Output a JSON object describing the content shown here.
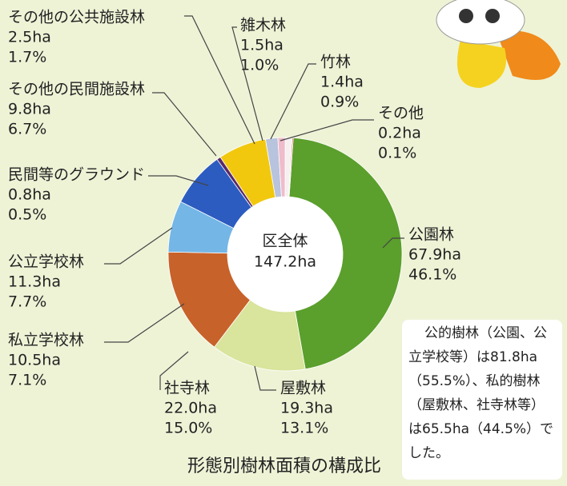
{
  "chart_data": {
    "type": "donut",
    "title": "形態別樹林面積の構成比",
    "center_label": "区全体",
    "total": 147.2,
    "total_label": "147.2ha",
    "categories": [
      "公園林",
      "屋敷林",
      "社寺林",
      "私立学校林",
      "公立学校林",
      "民間等のグラウンド",
      "その他の民間施設林",
      "その他の公共施設林",
      "雑木林",
      "竹林",
      "その他"
    ],
    "values": [
      67.9,
      19.3,
      22.0,
      10.5,
      11.3,
      0.8,
      9.8,
      2.5,
      1.5,
      1.4,
      0.2
    ],
    "value_labels": [
      "67.9ha",
      "19.3ha",
      "22.0ha",
      "10.5ha",
      "11.3ha",
      "0.8ha",
      "9.8ha",
      "2.5ha",
      "1.5ha",
      "1.4ha",
      "0.2ha"
    ],
    "percents": [
      46.1,
      13.1,
      15.0,
      7.1,
      7.7,
      0.5,
      6.7,
      1.7,
      1.0,
      0.9,
      0.1
    ],
    "percent_labels": [
      "46.1%",
      "13.1%",
      "15.0%",
      "7.1%",
      "7.7%",
      "0.5%",
      "6.7%",
      "1.7%",
      "1.0%",
      "0.9%",
      "0.1%"
    ],
    "colors": [
      "#5b9f2c",
      "#d9e49c",
      "#c7622a",
      "#74b6e6",
      "#2c5cc0",
      "#5a2a6a",
      "#f1c80e",
      "#b8c3dd",
      "#efbccb",
      "#f6f0f0",
      "#e11f1f"
    ],
    "note": [
      "公的樹林（公園、公",
      "立学校等）は81.8ha",
      "（55.5%）、私的樹林",
      "（屋敷林、社寺林等）",
      "は65.5ha（44.5%）で",
      "した。"
    ]
  }
}
